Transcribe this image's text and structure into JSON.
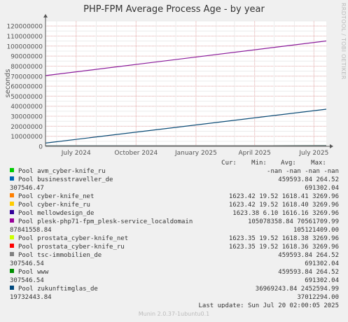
{
  "title": "PHP-FPM Average Process Age - by year",
  "side_label": "RRDTOOL / TOBI OETIKER",
  "footer": "Munin 2.0.37-1ubuntu0.1",
  "colors": {
    "background": "#f0f0f0",
    "plot_bg": "#ffffff",
    "grid_minor": "#e8e8e8",
    "grid_major": "#f0b0b0",
    "axis": "#777777"
  },
  "chart_data": {
    "type": "line",
    "ylabel": "seconds",
    "ylim": [
      0,
      125000000
    ],
    "y_ticks": [
      0,
      10000000,
      20000000,
      30000000,
      40000000,
      50000000,
      60000000,
      70000000,
      80000000,
      90000000,
      100000000,
      110000000,
      120000000
    ],
    "y_tick_labels": [
      "0",
      "10000000",
      "20000000",
      "30000000",
      "40000000",
      "50000000",
      "60000000",
      "70000000",
      "80000000",
      "90000000",
      "100000000",
      "110000000",
      "120000000"
    ],
    "x_range": [
      "2024-05-15",
      "2025-07-20"
    ],
    "x_ticks": [
      {
        "date": "2024-07-01",
        "label": "July 2024"
      },
      {
        "date": "2024-10-01",
        "label": "October 2024"
      },
      {
        "date": "2025-01-01",
        "label": "January 2025"
      },
      {
        "date": "2025-04-01",
        "label": "April 2025"
      },
      {
        "date": "2025-07-01",
        "label": "July 2025"
      }
    ],
    "grid": true,
    "series": [
      {
        "name": "plesk-php71-fpm_plesk-service_localdomain",
        "color": "#8a1a9a",
        "points": [
          [
            "2024-05-15",
            70500000
          ],
          [
            "2025-07-20",
            105100000
          ]
        ]
      },
      {
        "name": "zukunftimglas_de",
        "color": "#0a4a75",
        "points": [
          [
            "2024-05-15",
            3200000
          ],
          [
            "2025-07-20",
            37000000
          ]
        ]
      },
      {
        "name": "www",
        "color": "#008f00",
        "points": [
          [
            "2024-05-15",
            460000
          ],
          [
            "2025-07-20",
            691302
          ]
        ]
      },
      {
        "name": "businesstraveller_de",
        "color": "#0066b3",
        "points": [
          [
            "2024-05-15",
            460000
          ],
          [
            "2025-07-20",
            691302
          ]
        ]
      },
      {
        "name": "tsc-immobilien_de",
        "color": "#808080",
        "points": [
          [
            "2024-05-15",
            460000
          ],
          [
            "2025-07-20",
            691302
          ]
        ]
      }
    ]
  },
  "legend": {
    "headers": {
      "cur": "Cur:",
      "min": "Min:",
      "avg": "Avg:",
      "max": "Max:"
    },
    "rows": [
      {
        "name": "Pool avm_cyber-knife_ru",
        "color": "#00cc00",
        "values": "-nan   -nan   -nan   -nan",
        "overflow_left": "",
        "overflow_right": ""
      },
      {
        "name": "Pool businesstraveller_de",
        "color": "#0066b3",
        "values": "459593.84         264.52",
        "overflow_left": "307546.47",
        "overflow_right": "691302.04"
      },
      {
        "name": "Pool cyber-knife_net",
        "color": "#ff8000",
        "values": "1623.42  19.52 1618.41 3269.96",
        "overflow_left": "",
        "overflow_right": ""
      },
      {
        "name": "Pool cyber-knife_ru",
        "color": "#ffcc00",
        "values": "1623.42  19.52 1618.40 3269.96",
        "overflow_left": "",
        "overflow_right": ""
      },
      {
        "name": "Pool mellowdesign_de",
        "color": "#330099",
        "values": "1623.38   6.10 1616.16 3269.96",
        "overflow_left": "",
        "overflow_right": ""
      },
      {
        "name": "Pool plesk-php71-fpm_plesk-service_localdomain",
        "color": "#990099",
        "values": "105078358.84     70561709.99",
        "overflow_left": "87841558.84",
        "overflow_right": "105121409.00"
      },
      {
        "name": "Pool prostata_cyber-knife_net",
        "color": "#ccff00",
        "values": "1623.35  19.52 1618.38 3269.96",
        "overflow_left": "",
        "overflow_right": ""
      },
      {
        "name": "Pool prostata_cyber-knife_ru",
        "color": "#ff0000",
        "values": "1623.35  19.52 1618.36 3269.96",
        "overflow_left": "",
        "overflow_right": ""
      },
      {
        "name": "Pool tsc-immobilien_de",
        "color": "#808080",
        "values": "459593.84         264.52",
        "overflow_left": "307546.54",
        "overflow_right": "691302.04"
      },
      {
        "name": "Pool www",
        "color": "#008f00",
        "values": "459593.84         264.52",
        "overflow_left": "307546.54",
        "overflow_right": "691302.04"
      },
      {
        "name": "Pool zukunftimglas_de",
        "color": "#00487d",
        "values": "36969243.84     2452594.99",
        "overflow_left": "19732443.84",
        "overflow_right": "37012294.00"
      }
    ]
  },
  "last_update": "Last update: Sun Jul 20 02:00:05 2025"
}
